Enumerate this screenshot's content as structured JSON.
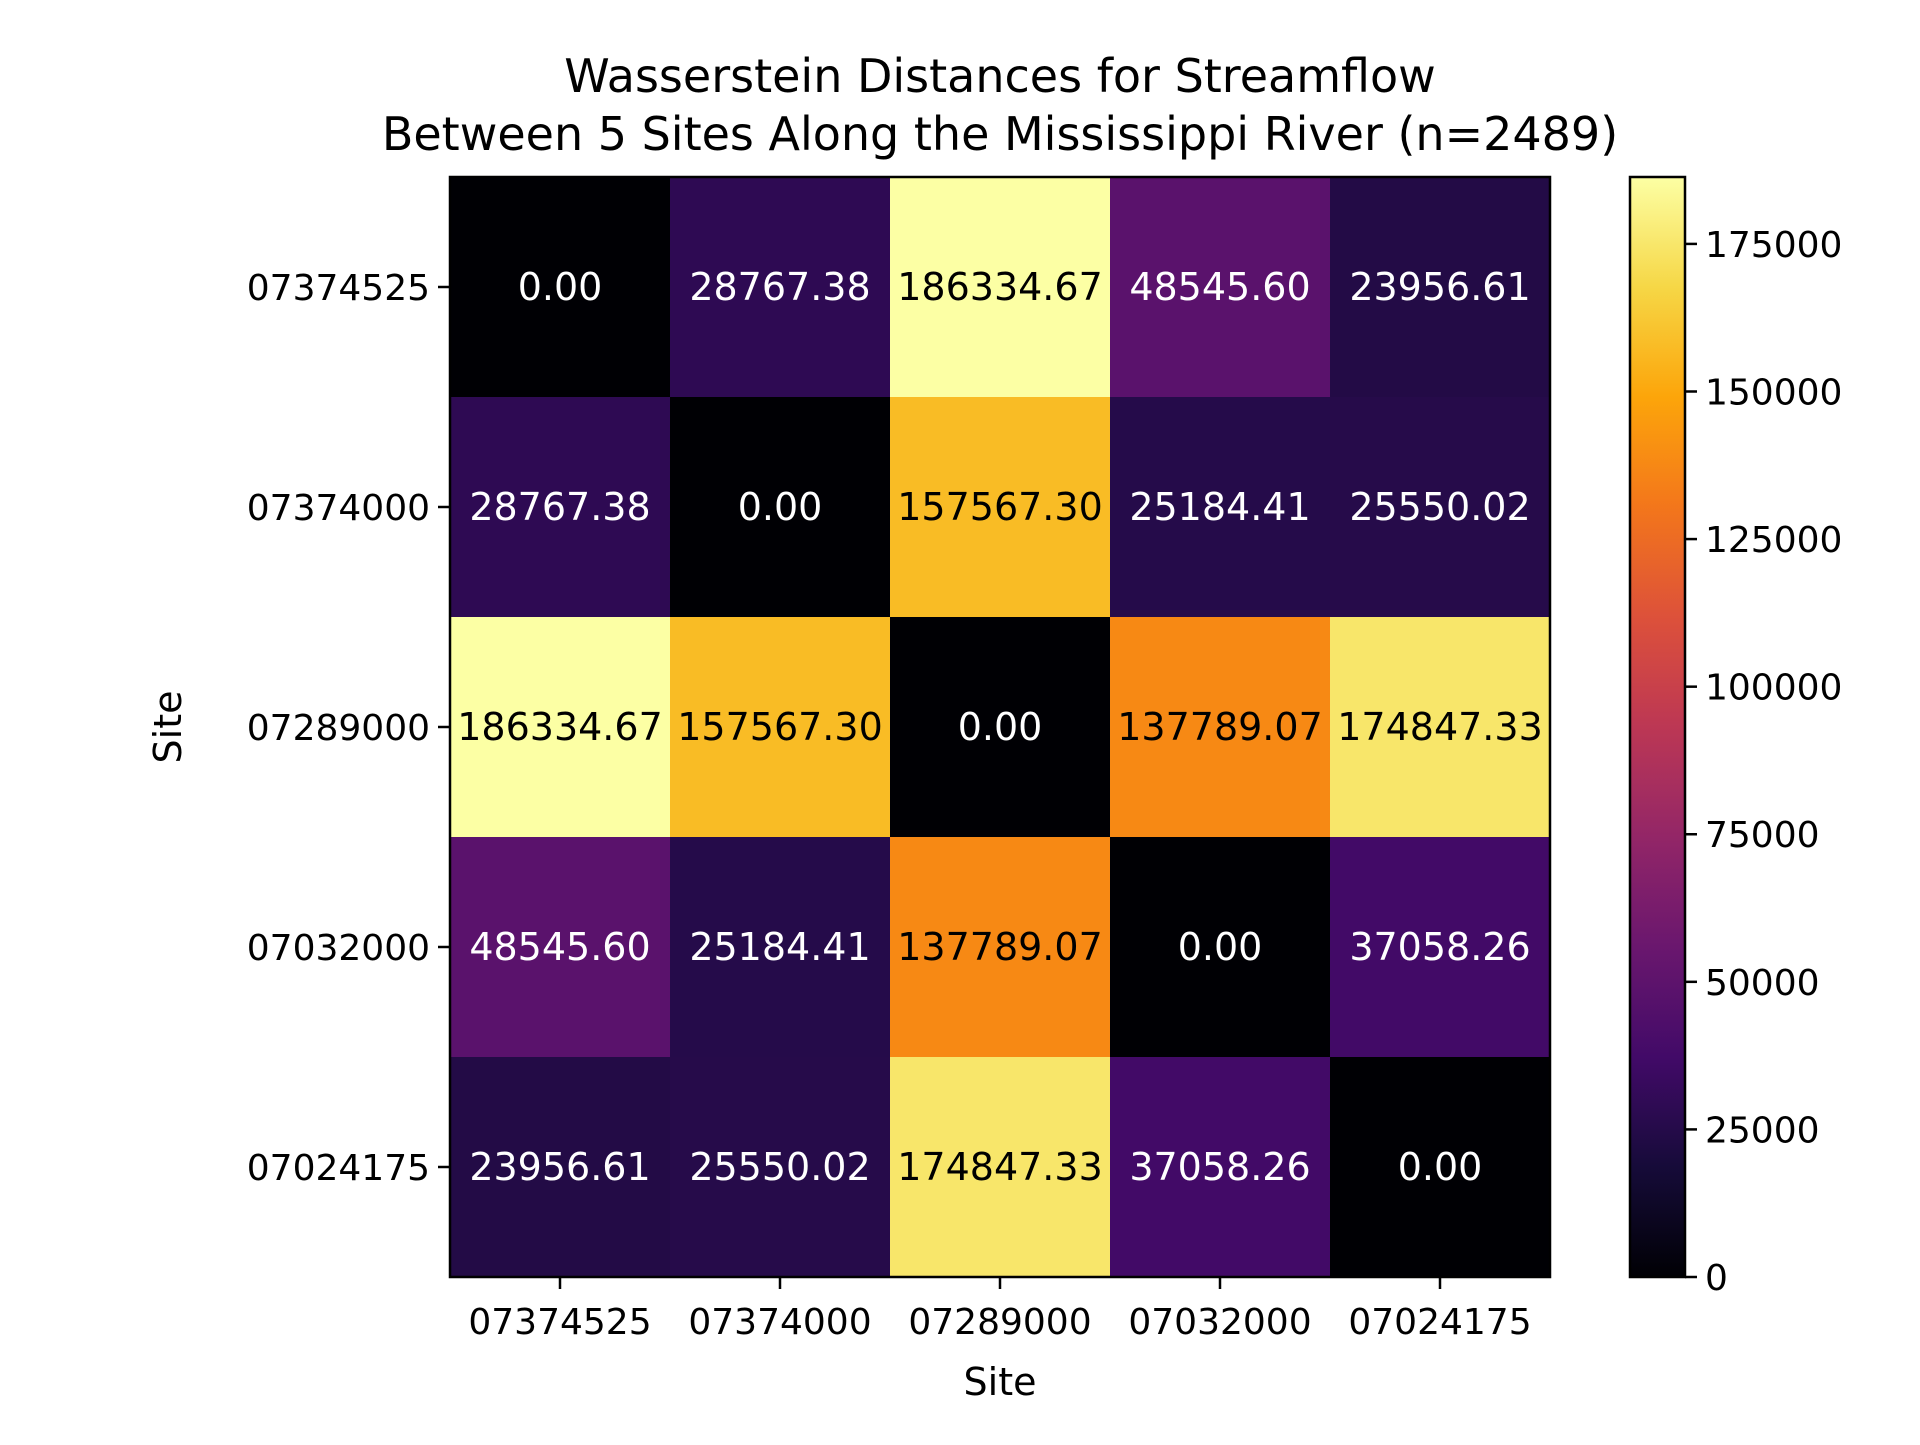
{
  "chart_data": {
    "type": "heatmap",
    "title_lines": [
      "Wasserstein Distances for Streamflow",
      "Between 5 Sites Along the Mississippi River (n=2489)"
    ],
    "xlabel": "Site",
    "ylabel": "Site",
    "x_categories": [
      "07374525",
      "07374000",
      "07289000",
      "07032000",
      "07024175"
    ],
    "y_categories": [
      "07374525",
      "07374000",
      "07289000",
      "07032000",
      "07024175"
    ],
    "matrix": [
      [
        0.0,
        28767.38,
        186334.67,
        48545.6,
        23956.61
      ],
      [
        28767.38,
        0.0,
        157567.3,
        25184.41,
        25550.02
      ],
      [
        186334.67,
        157567.3,
        0.0,
        137789.07,
        174847.33
      ],
      [
        48545.6,
        25184.41,
        137789.07,
        0.0,
        37058.26
      ],
      [
        23956.61,
        25550.02,
        174847.33,
        37058.26,
        0.0
      ]
    ],
    "cell_labels": [
      [
        "0.00",
        "28767.38",
        "186334.67",
        "48545.60",
        "23956.61"
      ],
      [
        "28767.38",
        "0.00",
        "157567.30",
        "25184.41",
        "25550.02"
      ],
      [
        "186334.67",
        "157567.30",
        "0.00",
        "137789.07",
        "174847.33"
      ],
      [
        "48545.60",
        "25184.41",
        "137789.07",
        "0.00",
        "37058.26"
      ],
      [
        "23956.61",
        "25550.02",
        "174847.33",
        "37058.26",
        "0.00"
      ]
    ],
    "colormap": "inferno",
    "colorbar": {
      "range": [
        0,
        186334.67
      ],
      "ticks": [
        0,
        25000,
        50000,
        75000,
        100000,
        125000,
        150000,
        175000
      ],
      "tick_labels": [
        "0",
        "25000",
        "50000",
        "75000",
        "100000",
        "125000",
        "150000",
        "175000"
      ]
    },
    "annotation_text_colors": {
      "dark_cells": "#ffffff",
      "light_cells": "#000000"
    }
  }
}
